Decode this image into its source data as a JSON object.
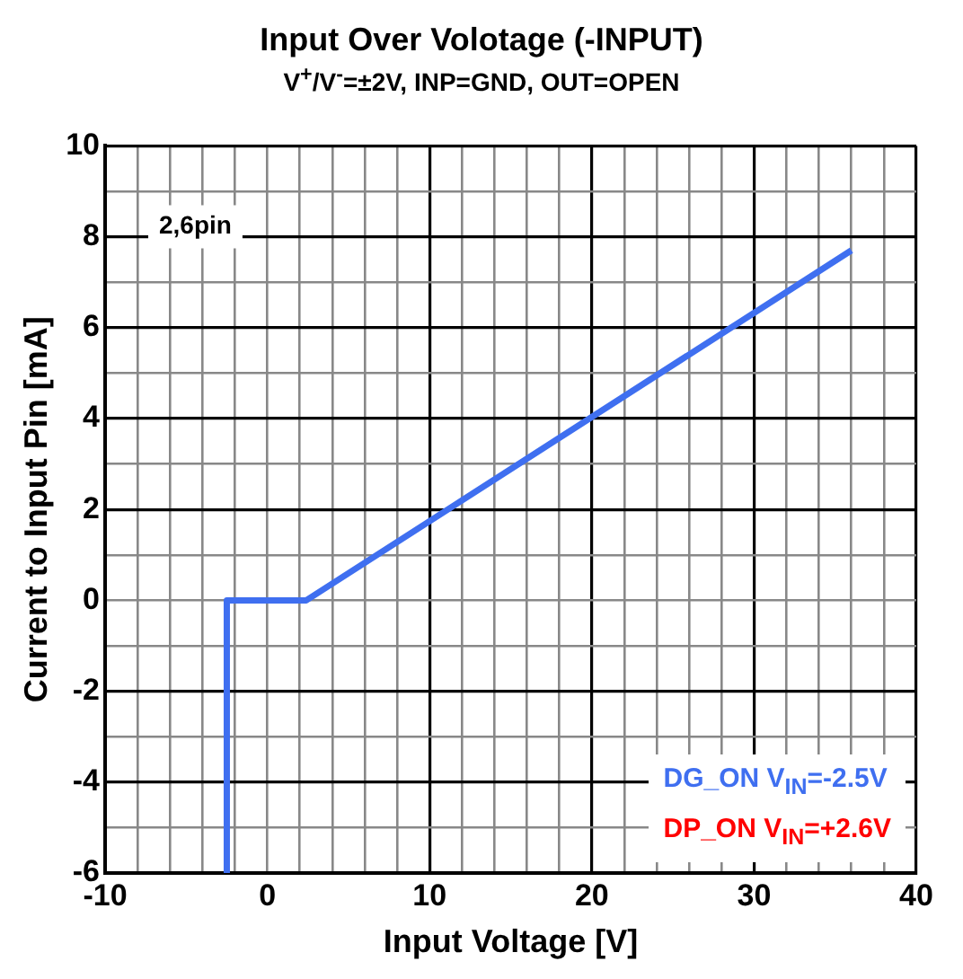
{
  "chart_data": {
    "type": "line",
    "title": "Input Over Volotage (-INPUT)",
    "subtitle": "V$^{+}$/V$^{-}$=±2V, INP=GND, OUT=OPEN",
    "xlabel": "Input Voltage [V]",
    "ylabel": "Current to Input Pin [mA]",
    "xlim": [
      -10,
      40
    ],
    "ylim": [
      -6,
      10
    ],
    "xticks": [
      -10,
      {
        "value": -8,
        "label": null
      },
      {
        "value": -6,
        "label": null
      },
      {
        "value": -4,
        "label": null
      },
      {
        "value": -2,
        "label": null
      },
      0,
      {
        "value": 2,
        "label": null
      },
      {
        "value": 4,
        "label": null
      },
      {
        "value": 6,
        "label": null
      },
      {
        "value": 8,
        "label": null
      },
      10,
      {
        "value": 12,
        "label": null
      },
      {
        "value": 14,
        "label": null
      },
      {
        "value": 16,
        "label": null
      },
      {
        "value": 18,
        "label": null
      },
      20,
      {
        "value": 22,
        "label": null
      },
      {
        "value": 24,
        "label": null
      },
      {
        "value": 26,
        "label": null
      },
      {
        "value": 28,
        "label": null
      },
      30,
      {
        "value": 32,
        "label": null
      },
      {
        "value": 34,
        "label": null
      },
      {
        "value": 36,
        "label": null
      },
      {
        "value": 38,
        "label": null
      },
      40
    ],
    "yticks": [
      -6,
      {
        "value": -5,
        "label": null
      },
      -4,
      {
        "value": -3,
        "label": null
      },
      -2,
      {
        "value": -1,
        "label": null
      },
      0,
      {
        "value": 1,
        "label": null
      },
      2,
      {
        "value": 3,
        "label": null
      },
      4,
      {
        "value": 5,
        "label": null
      },
      6,
      {
        "value": 7,
        "label": null
      },
      8,
      {
        "value": 9,
        "label": null
      },
      10
    ],
    "grid": true,
    "legend": "bottom right",
    "marker": "none",
    "line_style": "solid",
    "annotations": [
      "2,6pin"
    ],
    "series": [
      {
        "name": "DG_ON V$_{IN}$=-2.5V",
        "color": "#3f6ff0",
        "x": [
          -2.5,
          -2.5,
          2.4,
          36
        ],
        "values": [
          -6,
          0,
          0,
          7.7
        ]
      },
      {
        "name": "DP_ON V$_{IN}$=+2.6V",
        "color": "#ff0000",
        "values": [
          null
        ]
      }
    ]
  }
}
